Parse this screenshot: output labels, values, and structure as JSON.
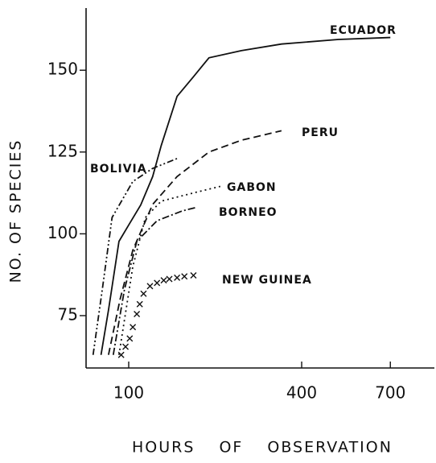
{
  "chart_data": {
    "type": "line",
    "xlabel": "HOURS OF OBSERVATION",
    "ylabel": "NO. OF SPECIES",
    "xscale": "pow",
    "xpow": 0.25,
    "xlim": [
      65,
      900
    ],
    "xticks": [
      100,
      400,
      700
    ],
    "ylim": [
      59,
      169
    ],
    "yticks": [
      75,
      100,
      125,
      150
    ],
    "series": [
      {
        "name": "ECUADOR",
        "color": "#111111",
        "style": "solid",
        "x": [
          76,
          82,
          91,
          100,
          112,
          125,
          135,
          155,
          178,
          202,
          260,
          348,
          509,
          700
        ],
        "values": [
          63,
          76.7,
          97.7,
          102.7,
          108.8,
          117.5,
          127,
          142,
          148,
          153.8,
          156,
          158,
          159.4,
          160
        ]
      },
      {
        "name": "PERU",
        "color": "#111111",
        "style": "dashed",
        "x": [
          82,
          92,
          104,
          125,
          155,
          202,
          260,
          348
        ],
        "values": [
          63,
          80,
          95,
          109,
          117.5,
          125,
          128.6,
          131.5
        ]
      },
      {
        "name": "BOLIVIA",
        "color": "#111111",
        "style": "dashdotdot",
        "x": [
          70,
          77,
          85,
          104,
          125,
          155
        ],
        "values": [
          63,
          83,
          105,
          116,
          120,
          123
        ]
      },
      {
        "name": "GABON",
        "color": "#111111",
        "style": "dotted",
        "x": [
          91,
          104,
          117,
          135,
          178,
          221
        ],
        "values": [
          63,
          90,
          105,
          110,
          112.5,
          114.5
        ]
      },
      {
        "name": "BORNEO",
        "color": "#111111",
        "style": "dashdot",
        "x": [
          86,
          96,
          108,
          130,
          162,
          181
        ],
        "values": [
          63,
          83,
          97.7,
          104,
          107,
          108
        ]
      },
      {
        "name": "NEW GUINEA",
        "color": "#111111",
        "style": "x",
        "x": [
          93,
          97,
          101,
          104,
          108,
          111,
          115,
          122,
          130,
          138,
          145,
          155,
          165,
          178
        ],
        "values": [
          63,
          65.5,
          68,
          71.5,
          75.5,
          78.5,
          81.7,
          84,
          85,
          85.8,
          86.2,
          86.6,
          87,
          87.3
        ]
      }
    ]
  }
}
